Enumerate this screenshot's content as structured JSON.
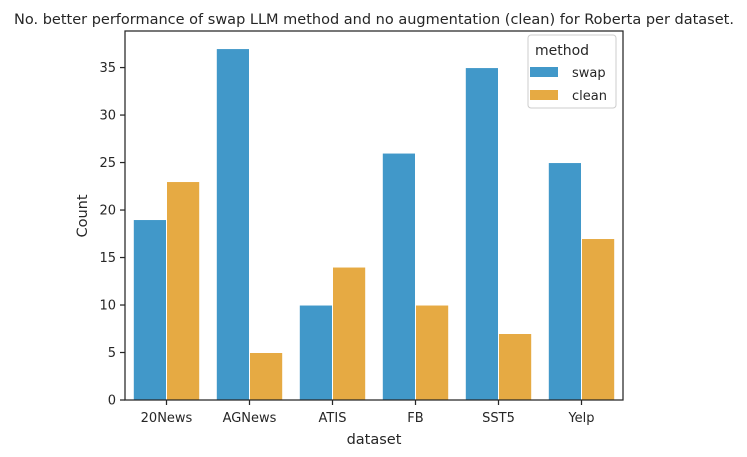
{
  "chart_data": {
    "type": "bar",
    "title": "No. better performance of swap LLM method and no augmentation (clean) for Roberta per dataset.",
    "xlabel": "dataset",
    "ylabel": "Count",
    "categories": [
      "20News",
      "AGNews",
      "ATIS",
      "FB",
      "SST5",
      "Yelp"
    ],
    "series": [
      {
        "name": "swap",
        "color": "#4198c9",
        "values": [
          19,
          37,
          10,
          26,
          35,
          25
        ]
      },
      {
        "name": "clean",
        "color": "#e6aa43",
        "values": [
          23,
          5,
          14,
          10,
          7,
          17
        ]
      }
    ],
    "ylim": [
      0,
      38.85
    ],
    "yticks": [
      0,
      5,
      10,
      15,
      20,
      25,
      30,
      35
    ],
    "grid": false,
    "legend": {
      "title": "method",
      "placement": "top-right"
    }
  }
}
